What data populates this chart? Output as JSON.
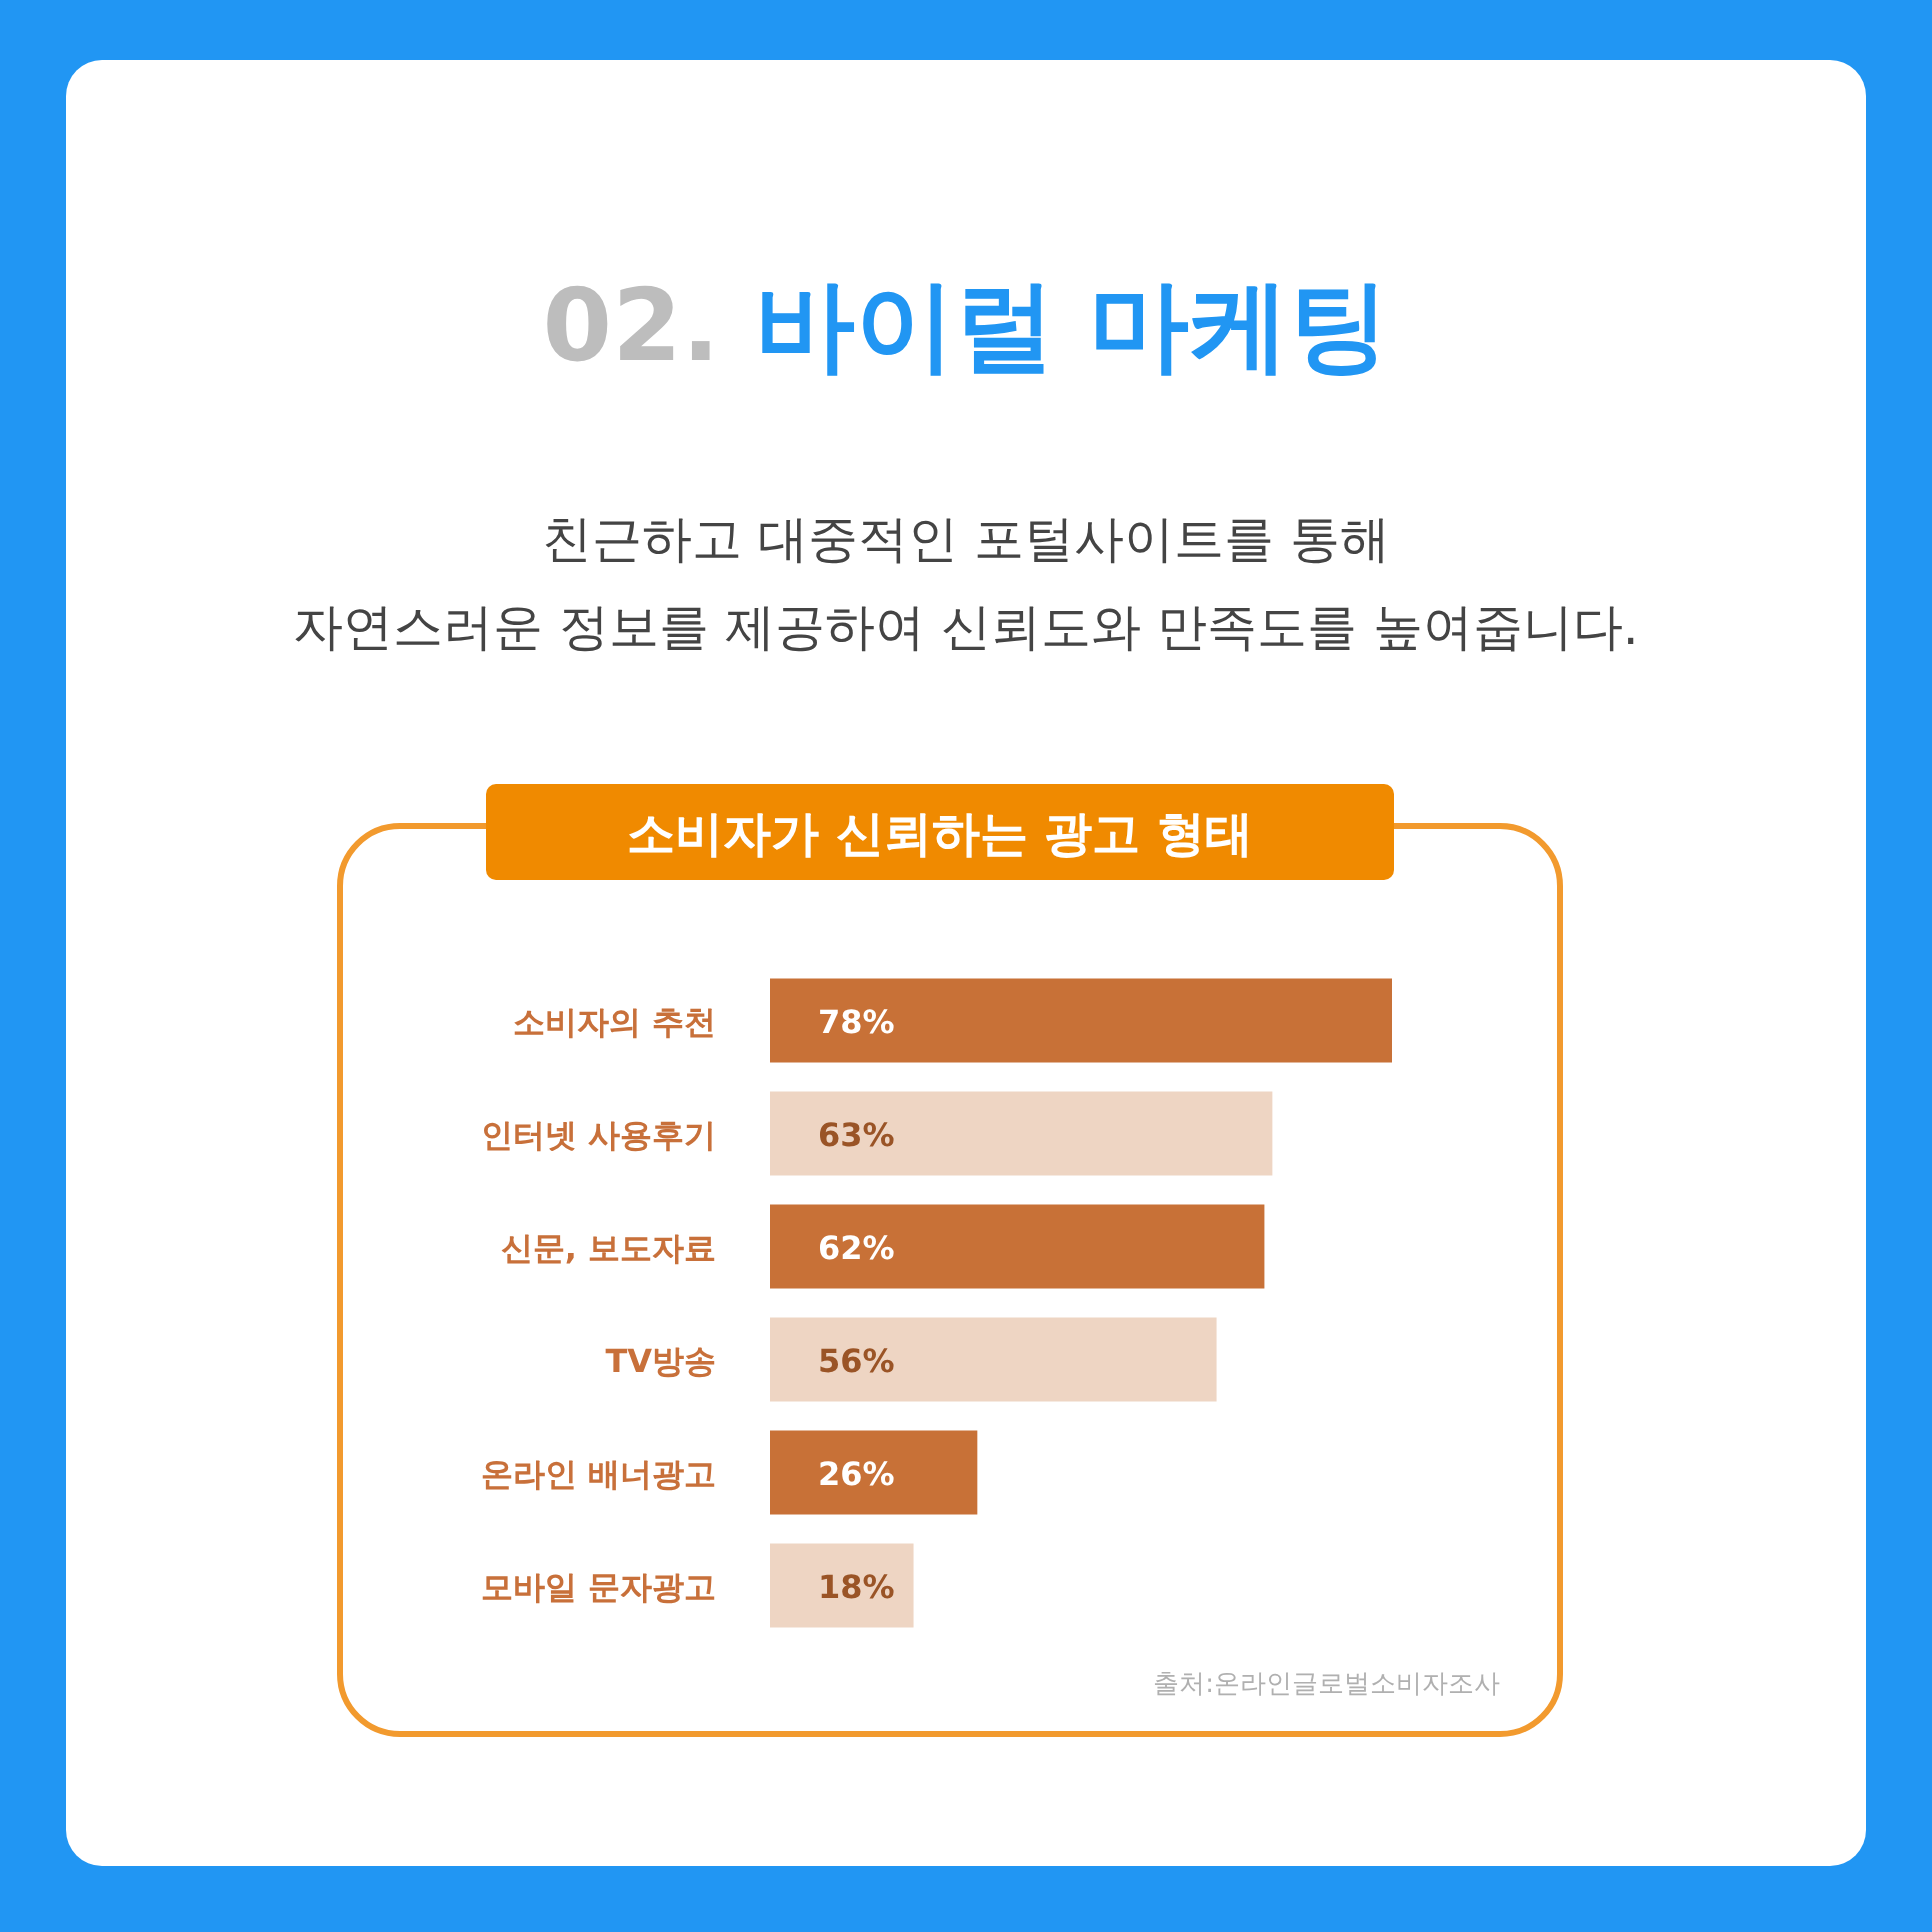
{
  "chart_data": {
    "type": "bar",
    "orientation": "horizontal",
    "title": "02. 바이럴 마케팅",
    "subtitle": "친근하고 대중적인 포털사이트를 통해\n자연스러운 정보를 제공하여 신뢰도와 만족도를 높여줍니다.",
    "annotations": [
      "소비자가 신뢰하는 광고 형태",
      "출처:온라인글로벌소비자조사"
    ],
    "categories": [
      "소비자의 추천",
      "인터넷 사용후기",
      "신문, 보도자료",
      "TV방송",
      "온라인 배너광고",
      "모바일 문자광고"
    ],
    "values": [
      78,
      63,
      62,
      56,
      26,
      18
    ],
    "colors": [
      "#c87137",
      "#eed5c3",
      "#c87137",
      "#eed5c3",
      "#c87137",
      "#eed5c3"
    ],
    "value_labels": [
      "78%",
      "63%",
      "62%",
      "56%",
      "26%",
      "18%"
    ]
  }
}
